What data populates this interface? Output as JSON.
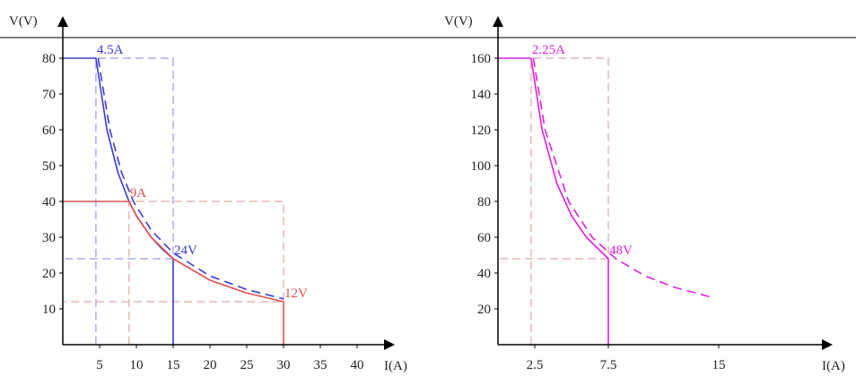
{
  "colors": {
    "axis": "#000000",
    "blue_solid": "#3a3ad6",
    "blue_dashed": "#3a3ad6",
    "blue_guide": "#9a9ae0",
    "red": "#e05050",
    "red_guide": "#e0a6a6",
    "magenta": "#e020e0",
    "magenta_guide": "#d8a8a8",
    "blue_bar": "#7a7ad0"
  },
  "chart_data": [
    {
      "type": "line",
      "title": "",
      "xlabel": "I(A)",
      "ylabel": "V(V)",
      "xlim": [
        0,
        44
      ],
      "ylim": [
        0,
        88
      ],
      "x_ticks": [
        {
          "value": 5,
          "label": "5"
        },
        {
          "value": 10,
          "label": "10"
        },
        {
          "value": 15,
          "label": "15"
        },
        {
          "value": 20,
          "label": "20"
        },
        {
          "value": 25,
          "label": "25"
        },
        {
          "value": 30,
          "label": "30"
        },
        {
          "value": 35,
          "label": "35"
        },
        {
          "value": 40,
          "label": "40"
        }
      ],
      "y_ticks": [
        {
          "value": 10,
          "label": "10"
        },
        {
          "value": 20,
          "label": "20"
        },
        {
          "value": 30,
          "label": "30"
        },
        {
          "value": 40,
          "label": "40"
        },
        {
          "value": 50,
          "label": "50"
        },
        {
          "value": 60,
          "label": "60"
        },
        {
          "value": 70,
          "label": "70"
        },
        {
          "value": 80,
          "label": "80"
        }
      ],
      "series": [
        {
          "style": "solid",
          "color": "blue_solid",
          "type": "line",
          "points": [
            [
              0,
              80
            ],
            [
              4.5,
              80
            ],
            [
              6,
              60
            ],
            [
              7.5,
              48
            ],
            [
              9,
              40
            ],
            [
              10,
              36
            ],
            [
              12,
              30
            ],
            [
              13.5,
              26.7
            ],
            [
              15,
              24
            ],
            [
              15,
              0
            ]
          ]
        },
        {
          "style": "dashed",
          "color": "blue_dashed",
          "type": "line",
          "points": [
            [
              4.8,
              80
            ],
            [
              6.4,
              60
            ],
            [
              8,
              48
            ],
            [
              9.6,
              40
            ],
            [
              12,
              32
            ],
            [
              15,
              25.6
            ],
            [
              20,
              19.2
            ],
            [
              25,
              15.4
            ],
            [
              30,
              12.8
            ]
          ]
        },
        {
          "style": "solid",
          "color": "red",
          "type": "line",
          "points": [
            [
              0,
              40
            ],
            [
              9,
              40
            ],
            [
              10,
              36
            ],
            [
              12,
              30
            ],
            [
              15,
              24
            ],
            [
              20,
              18
            ],
            [
              25,
              14.4
            ],
            [
              30,
              12
            ],
            [
              30,
              0
            ]
          ]
        }
      ],
      "guides": [
        {
          "color": "blue_guide",
          "points": [
            [
              4.5,
              0
            ],
            [
              4.5,
              80
            ],
            [
              15,
              80
            ],
            [
              15,
              24
            ],
            [
              0,
              24
            ]
          ]
        },
        {
          "color": "red_guide",
          "points": [
            [
              9,
              0
            ],
            [
              9,
              40
            ],
            [
              30,
              40
            ],
            [
              30,
              12
            ],
            [
              0,
              12
            ]
          ]
        }
      ],
      "annotations": [
        {
          "text": "4.5A",
          "x": 4.5,
          "y": 80,
          "color": "blue_solid"
        },
        {
          "text": "9A",
          "x": 9,
          "y": 40,
          "color": "red"
        },
        {
          "text": "24V",
          "x": 15,
          "y": 24,
          "color": "blue_solid"
        },
        {
          "text": "12V",
          "x": 30,
          "y": 12,
          "color": "red"
        }
      ]
    },
    {
      "type": "line",
      "title": "",
      "xlabel": "I(A)",
      "ylabel": "V(V)",
      "xlim": [
        0,
        22
      ],
      "ylim": [
        0,
        176
      ],
      "x_ticks": [
        {
          "value": 2.5,
          "label": "2.5"
        },
        {
          "value": 7.5,
          "label": "7.5"
        },
        {
          "value": 15,
          "label": "15"
        }
      ],
      "y_ticks": [
        {
          "value": 20,
          "label": "20"
        },
        {
          "value": 40,
          "label": "40"
        },
        {
          "value": 60,
          "label": "60"
        },
        {
          "value": 80,
          "label": "80"
        },
        {
          "value": 100,
          "label": "100"
        },
        {
          "value": 120,
          "label": "120"
        },
        {
          "value": 140,
          "label": "140"
        },
        {
          "value": 160,
          "label": "160"
        }
      ],
      "series": [
        {
          "style": "solid",
          "color": "magenta",
          "type": "line",
          "points": [
            [
              0,
              160
            ],
            [
              2.25,
              160
            ],
            [
              3,
              120
            ],
            [
              4,
              90
            ],
            [
              5,
              72
            ],
            [
              6,
              60
            ],
            [
              7.5,
              48
            ],
            [
              7.5,
              0
            ]
          ]
        },
        {
          "style": "dashed",
          "color": "magenta",
          "type": "line",
          "points": [
            [
              2.4,
              160
            ],
            [
              3.2,
              120
            ],
            [
              4.8,
              80
            ],
            [
              6.4,
              60
            ],
            [
              8,
              48
            ],
            [
              10,
              38.4
            ],
            [
              12,
              32
            ],
            [
              14.5,
              26.5
            ]
          ]
        }
      ],
      "guides": [
        {
          "color": "magenta_guide",
          "points": [
            [
              2.25,
              0
            ],
            [
              2.25,
              160
            ],
            [
              7.5,
              160
            ],
            [
              7.5,
              48
            ],
            [
              0,
              48
            ]
          ]
        }
      ],
      "annotations": [
        {
          "text": "2.25A",
          "x": 2.25,
          "y": 160,
          "color": "magenta"
        },
        {
          "text": "48V",
          "x": 7.5,
          "y": 48,
          "color": "magenta"
        }
      ]
    }
  ]
}
